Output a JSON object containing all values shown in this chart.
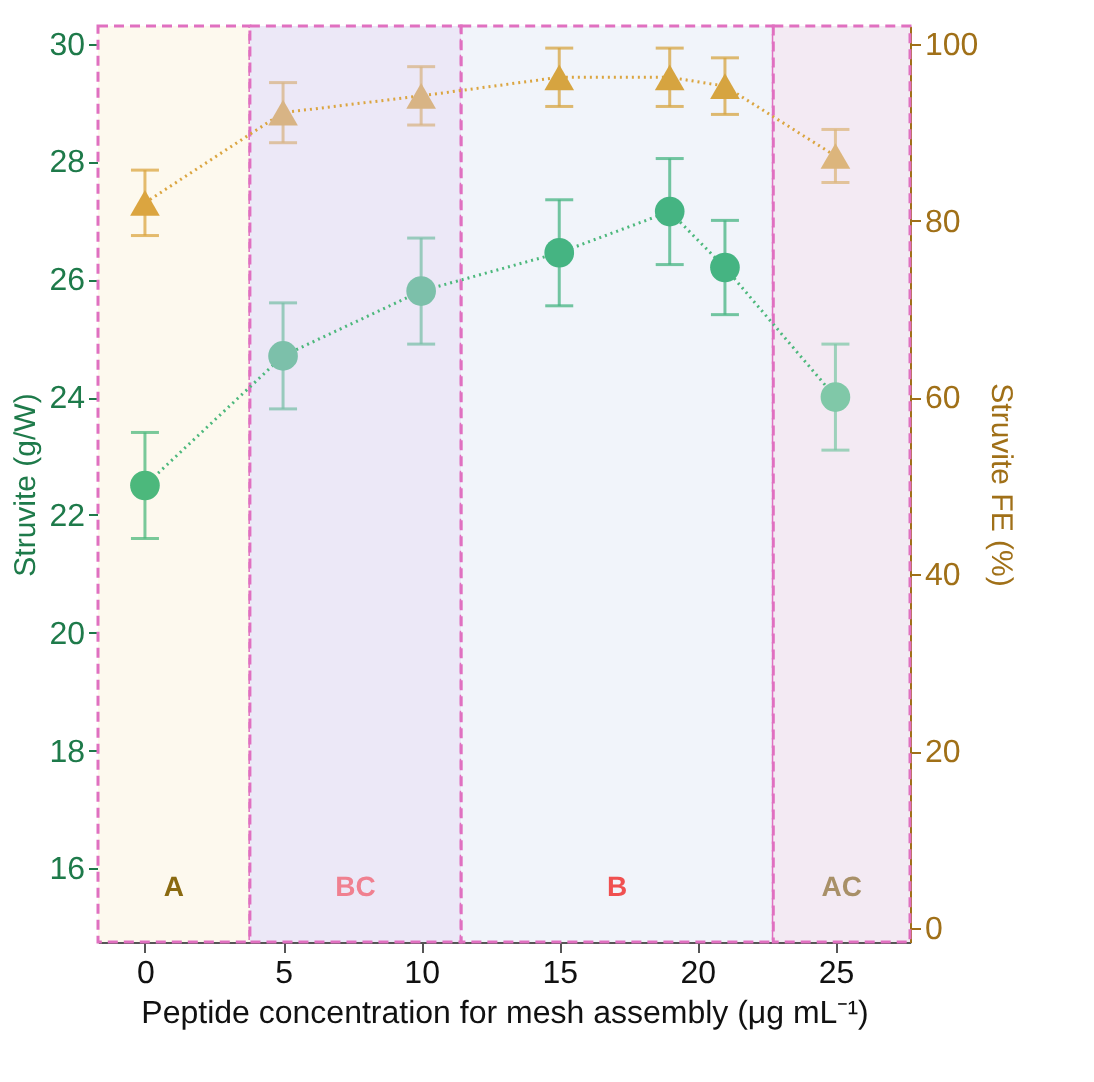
{
  "chart_data": {
    "type": "line",
    "xlabel": "Peptide concentration for mesh assembly (μg mL⁻¹)",
    "ylabel": "Struvite (g/W)",
    "y2label": "Struvite FE (%)",
    "x": [
      0,
      5,
      10,
      15,
      19,
      21,
      25
    ],
    "xlim": [
      -1.7,
      27.7
    ],
    "xticks": [
      0,
      5,
      10,
      15,
      20,
      25
    ],
    "ylim": [
      14.75,
      30.3
    ],
    "yticks": [
      16,
      18,
      20,
      22,
      24,
      26,
      28,
      30
    ],
    "y2lim": [
      -1.6,
      102
    ],
    "y2ticks": [
      0,
      20,
      40,
      60,
      80,
      100
    ],
    "line_style": "dotted",
    "grid": false,
    "series": [
      {
        "color": "#4cb87c",
        "colors": [
          "#4cb87c",
          "#7cc0aa",
          "#7cc0aa",
          "#45b482",
          "#45b482",
          "#45b482",
          "#80c8a8"
        ],
        "marker": "circle",
        "values": [
          22.5,
          24.7,
          25.8,
          26.45,
          27.15,
          26.2,
          24.0
        ],
        "errors": [
          0.9,
          0.9,
          0.9,
          0.9,
          0.9,
          0.8,
          0.9
        ]
      },
      {
        "color": "#dba540",
        "colors": [
          "#dba540",
          "#d8b485",
          "#d8b485",
          "#d6a440",
          "#d6a440",
          "#d6a440",
          "#dcb57c"
        ],
        "marker": "triangle",
        "axis": "y2",
        "values": [
          82,
          92.2,
          94.1,
          96.2,
          96.2,
          95.2,
          87.3
        ],
        "errors": [
          3.7,
          3.4,
          3.3,
          3.3,
          3.3,
          3.2,
          3.0
        ]
      }
    ],
    "bands": [
      {
        "axis": "x",
        "from": -1.7,
        "to": 3.8,
        "label": "A",
        "color": "#fdf9ee"
      },
      {
        "axis": "x",
        "from": 3.8,
        "to": 11.45,
        "label": "BC",
        "color": "#ece8f7"
      },
      {
        "axis": "x",
        "from": 11.45,
        "to": 22.75,
        "label": "B",
        "color": "#f1f4fa"
      },
      {
        "axis": "x",
        "from": 22.75,
        "to": 27.7,
        "label": "AC",
        "color": "#f3eaf3"
      }
    ]
  }
}
